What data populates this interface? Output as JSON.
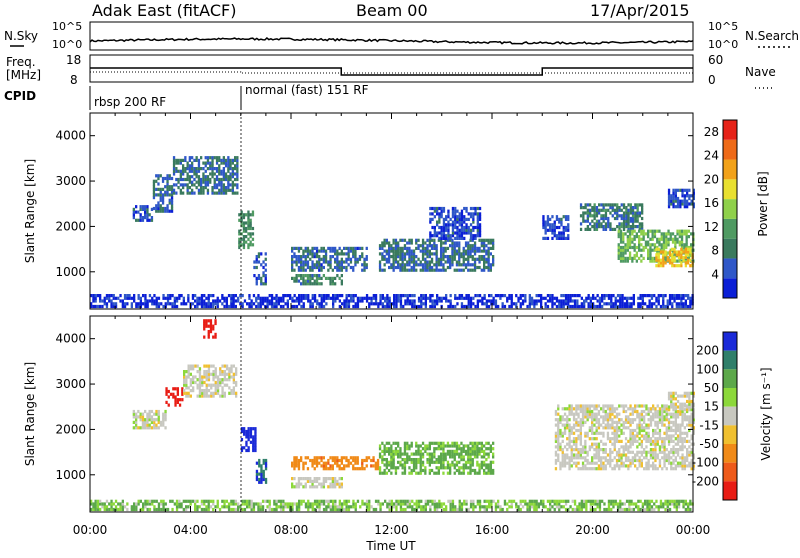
{
  "header": {
    "radar": "Adak East (fitACF)",
    "beam": "Beam 00",
    "date": "17/Apr/2015"
  },
  "top_panels": {
    "nsky_label": "N.Sky",
    "nsky_ticks": [
      "10^5",
      "10^0"
    ],
    "nsearch_label": "N.Search",
    "freq_label_1": "Freq.",
    "freq_label_2": "[MHz]",
    "freq_ticks": [
      "18",
      "8"
    ],
    "nave_label": "Nave",
    "nave_ticks": [
      "60",
      "0"
    ],
    "cpid_label": "CPID",
    "cpid_segments": [
      {
        "label": "rbsp 200 RF",
        "start_hour": 0,
        "end_hour": 6
      },
      {
        "label": "normal (fast) 151 RF",
        "start_hour": 6,
        "end_hour": 24
      }
    ]
  },
  "colors": {
    "power_scale": [
      "#0b1fd6",
      "#2f57c8",
      "#3a7a5e",
      "#4f9a62",
      "#8fd04a",
      "#e8e030",
      "#f2a21a",
      "#ee6a18",
      "#e62218"
    ],
    "velocity_scale": [
      "#1a2ad8",
      "#2f7f6a",
      "#5ca84a",
      "#8cd83a",
      "#c8c8c0",
      "#f0c030",
      "#f08a18",
      "#ee5a1a",
      "#e81c14"
    ]
  },
  "chart_data": [
    {
      "type": "heatmap",
      "name": "power",
      "ylabel": "Slant Range [km]",
      "xlabel": "Time UT",
      "x_ticks": [
        "00:00",
        "04:00",
        "08:00",
        "12:00",
        "16:00",
        "20:00",
        "00:00"
      ],
      "y_ticks": [
        1000,
        2000,
        3000,
        4000
      ],
      "xlim_hours": [
        0,
        24
      ],
      "ylim_km": [
        180,
        4500
      ],
      "colorbar_label": "Power [dB]",
      "colorbar_ticks": [
        4,
        8,
        12,
        16,
        20,
        24,
        28
      ],
      "colorbar_range": [
        0,
        30
      ],
      "regions": [
        {
          "t0": 1.7,
          "t1": 2.5,
          "r0": 2100,
          "r1": 2450,
          "level": 5
        },
        {
          "t0": 2.5,
          "t1": 3.3,
          "r0": 2300,
          "r1": 3100,
          "level": 6
        },
        {
          "t0": 3.3,
          "t1": 5.9,
          "r0": 2700,
          "r1": 3500,
          "level": 7
        },
        {
          "t0": 5.9,
          "t1": 6.5,
          "r0": 1500,
          "r1": 2300,
          "level": 10
        },
        {
          "t0": 6.5,
          "t1": 7.0,
          "r0": 700,
          "r1": 1400,
          "level": 5
        },
        {
          "t0": 8.0,
          "t1": 11.0,
          "r0": 1000,
          "r1": 1500,
          "level": 6
        },
        {
          "t0": 8.0,
          "t1": 10.0,
          "r0": 700,
          "r1": 900,
          "level": 9
        },
        {
          "t0": 11.5,
          "t1": 16.0,
          "r0": 1000,
          "r1": 1700,
          "level": 7
        },
        {
          "t0": 13.5,
          "t1": 15.5,
          "r0": 1700,
          "r1": 2400,
          "level": 4
        },
        {
          "t0": 18.0,
          "t1": 19.0,
          "r0": 1700,
          "r1": 2200,
          "level": 4
        },
        {
          "t0": 19.5,
          "t1": 22.0,
          "r0": 1900,
          "r1": 2500,
          "level": 8
        },
        {
          "t0": 21.0,
          "t1": 24.0,
          "r0": 1200,
          "r1": 1900,
          "level": 13
        },
        {
          "t0": 22.5,
          "t1": 24.0,
          "r0": 1100,
          "r1": 1500,
          "level": 20
        },
        {
          "t0": 23.0,
          "t1": 24.0,
          "r0": 2400,
          "r1": 2800,
          "level": 4
        },
        {
          "t0": 0.0,
          "t1": 24.0,
          "r0": 200,
          "r1": 450,
          "level": 2
        }
      ]
    },
    {
      "type": "heatmap",
      "name": "velocity",
      "ylabel": "Slant Range [km]",
      "xlabel": "Time UT",
      "x_ticks": [
        "00:00",
        "04:00",
        "08:00",
        "12:00",
        "16:00",
        "20:00",
        "00:00"
      ],
      "y_ticks": [
        1000,
        2000,
        3000,
        4000
      ],
      "xlim_hours": [
        0,
        24
      ],
      "ylim_km": [
        180,
        4500
      ],
      "colorbar_label": "Velocity [m s⁻¹]",
      "colorbar_ticks": [
        "200",
        "100",
        "50",
        "15",
        "-15",
        "-50",
        "-100",
        "-200"
      ],
      "regions": [
        {
          "t0": 1.7,
          "t1": 3.0,
          "r0": 2000,
          "r1": 2400,
          "vel": 0
        },
        {
          "t0": 3.0,
          "t1": 3.7,
          "r0": 2500,
          "r1": 2900,
          "vel": -200
        },
        {
          "t0": 3.7,
          "t1": 5.8,
          "r0": 2700,
          "r1": 3400,
          "vel": 0
        },
        {
          "t0": 4.5,
          "t1": 5.0,
          "r0": 4000,
          "r1": 4400,
          "vel": -200
        },
        {
          "t0": 6.0,
          "t1": 6.6,
          "r0": 1500,
          "r1": 2000,
          "vel": 200
        },
        {
          "t0": 6.6,
          "t1": 7.0,
          "r0": 800,
          "r1": 1300,
          "vel": 150
        },
        {
          "t0": 8.0,
          "t1": 11.5,
          "r0": 1100,
          "r1": 1400,
          "vel": -60
        },
        {
          "t0": 8.0,
          "t1": 10.0,
          "r0": 700,
          "r1": 900,
          "vel": 0
        },
        {
          "t0": 11.5,
          "t1": 16.0,
          "r0": 1000,
          "r1": 1700,
          "vel": 40
        },
        {
          "t0": 18.5,
          "t1": 24.0,
          "r0": 1100,
          "r1": 2500,
          "vel": 0
        },
        {
          "t0": 23.0,
          "t1": 24.0,
          "r0": 2400,
          "r1": 2800,
          "vel": 0
        },
        {
          "t0": 0.0,
          "t1": 24.0,
          "r0": 200,
          "r1": 400,
          "vel": 30
        }
      ]
    }
  ]
}
